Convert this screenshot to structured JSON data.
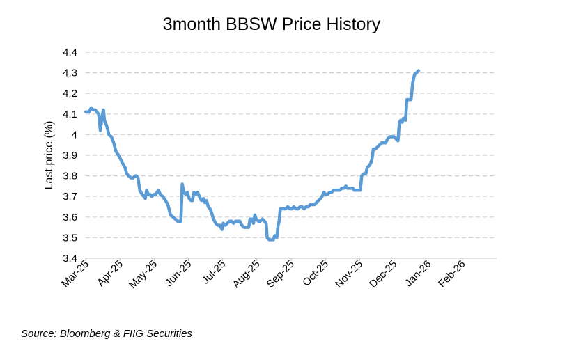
{
  "chart_data": {
    "type": "line",
    "title": "3month BBSW Price History",
    "xlabel": "",
    "ylabel": "Last price (%)",
    "ylim": [
      3.4,
      4.4
    ],
    "yticks": [
      "3.4",
      "3.5",
      "3.6",
      "3.7",
      "3.8",
      "3.9",
      "4",
      "4.1",
      "4.2",
      "4.3",
      "4.4"
    ],
    "xlim": [
      0,
      12
    ],
    "xticks": [
      "Mar-25",
      "Apr-25",
      "May-25",
      "Jun-25",
      "Jul-25",
      "Aug-25",
      "Sep-25",
      "Oct-25",
      "Nov-25",
      "Dec-25",
      "Jan-26",
      "Feb-26"
    ],
    "grid": true,
    "legend": "none",
    "series": [
      {
        "name": "3month BBSW",
        "color": "#5b9bd5",
        "points": [
          [
            0.0,
            4.11
          ],
          [
            0.05,
            4.11
          ],
          [
            0.1,
            4.11
          ],
          [
            0.16,
            4.13
          ],
          [
            0.22,
            4.12
          ],
          [
            0.28,
            4.12
          ],
          [
            0.33,
            4.11
          ],
          [
            0.38,
            4.1
          ],
          [
            0.43,
            4.02
          ],
          [
            0.48,
            4.09
          ],
          [
            0.52,
            4.12
          ],
          [
            0.55,
            4.07
          ],
          [
            0.62,
            4.04
          ],
          [
            0.68,
            4.0
          ],
          [
            0.75,
            3.99
          ],
          [
            0.82,
            3.96
          ],
          [
            0.88,
            3.92
          ],
          [
            0.96,
            3.9
          ],
          [
            1.02,
            3.88
          ],
          [
            1.08,
            3.86
          ],
          [
            1.15,
            3.84
          ],
          [
            1.2,
            3.81
          ],
          [
            1.25,
            3.8
          ],
          [
            1.32,
            3.79
          ],
          [
            1.38,
            3.79
          ],
          [
            1.45,
            3.8
          ],
          [
            1.48,
            3.8
          ],
          [
            1.53,
            3.79
          ],
          [
            1.58,
            3.73
          ],
          [
            1.65,
            3.71
          ],
          [
            1.7,
            3.7
          ],
          [
            1.74,
            3.69
          ],
          [
            1.78,
            3.73
          ],
          [
            1.83,
            3.71
          ],
          [
            1.88,
            3.71
          ],
          [
            1.93,
            3.7
          ],
          [
            2.0,
            3.71
          ],
          [
            2.05,
            3.71
          ],
          [
            2.08,
            3.72
          ],
          [
            2.12,
            3.73
          ],
          [
            2.18,
            3.71
          ],
          [
            2.25,
            3.7
          ],
          [
            2.33,
            3.68
          ],
          [
            2.4,
            3.66
          ],
          [
            2.48,
            3.61
          ],
          [
            2.55,
            3.6
          ],
          [
            2.62,
            3.59
          ],
          [
            2.68,
            3.58
          ],
          [
            2.75,
            3.58
          ],
          [
            2.78,
            3.58
          ],
          [
            2.82,
            3.76
          ],
          [
            2.87,
            3.72
          ],
          [
            2.92,
            3.71
          ],
          [
            2.97,
            3.72
          ],
          [
            3.02,
            3.69
          ],
          [
            3.08,
            3.68
          ],
          [
            3.12,
            3.68
          ],
          [
            3.16,
            3.72
          ],
          [
            3.22,
            3.71
          ],
          [
            3.27,
            3.72
          ],
          [
            3.32,
            3.7
          ],
          [
            3.38,
            3.68
          ],
          [
            3.44,
            3.69
          ],
          [
            3.48,
            3.67
          ],
          [
            3.53,
            3.68
          ],
          [
            3.58,
            3.65
          ],
          [
            3.63,
            3.64
          ],
          [
            3.68,
            3.62
          ],
          [
            3.73,
            3.59
          ],
          [
            3.8,
            3.57
          ],
          [
            3.86,
            3.56
          ],
          [
            3.92,
            3.56
          ],
          [
            3.98,
            3.54
          ],
          [
            4.02,
            3.57
          ],
          [
            4.08,
            3.56
          ],
          [
            4.14,
            3.57
          ],
          [
            4.2,
            3.58
          ],
          [
            4.26,
            3.58
          ],
          [
            4.32,
            3.57
          ],
          [
            4.38,
            3.58
          ],
          [
            4.44,
            3.58
          ],
          [
            4.5,
            3.58
          ],
          [
            4.56,
            3.56
          ],
          [
            4.62,
            3.55
          ],
          [
            4.7,
            3.55
          ],
          [
            4.76,
            3.55
          ],
          [
            4.8,
            3.59
          ],
          [
            4.86,
            3.59
          ],
          [
            4.9,
            3.57
          ],
          [
            4.94,
            3.61
          ],
          [
            4.98,
            3.59
          ],
          [
            5.04,
            3.58
          ],
          [
            5.1,
            3.58
          ],
          [
            5.16,
            3.59
          ],
          [
            5.22,
            3.58
          ],
          [
            5.27,
            3.57
          ],
          [
            5.3,
            3.5
          ],
          [
            5.36,
            3.49
          ],
          [
            5.42,
            3.49
          ],
          [
            5.48,
            3.49
          ],
          [
            5.52,
            3.51
          ],
          [
            5.58,
            3.5
          ],
          [
            5.62,
            3.56
          ],
          [
            5.65,
            3.58
          ],
          [
            5.68,
            3.64
          ],
          [
            5.72,
            3.64
          ],
          [
            5.78,
            3.64
          ],
          [
            5.84,
            3.64
          ],
          [
            5.9,
            3.65
          ],
          [
            5.96,
            3.64
          ],
          [
            6.02,
            3.64
          ],
          [
            6.08,
            3.65
          ],
          [
            6.14,
            3.64
          ],
          [
            6.2,
            3.64
          ],
          [
            6.26,
            3.65
          ],
          [
            6.32,
            3.65
          ],
          [
            6.38,
            3.64
          ],
          [
            6.44,
            3.65
          ],
          [
            6.5,
            3.65
          ],
          [
            6.56,
            3.66
          ],
          [
            6.62,
            3.66
          ],
          [
            6.68,
            3.66
          ],
          [
            6.74,
            3.67
          ],
          [
            6.8,
            3.68
          ],
          [
            6.86,
            3.69
          ],
          [
            6.9,
            3.7
          ],
          [
            6.96,
            3.72
          ],
          [
            7.0,
            3.71
          ],
          [
            7.06,
            3.71
          ],
          [
            7.12,
            3.72
          ],
          [
            7.18,
            3.72
          ],
          [
            7.24,
            3.73
          ],
          [
            7.3,
            3.73
          ],
          [
            7.36,
            3.73
          ],
          [
            7.42,
            3.73
          ],
          [
            7.48,
            3.74
          ],
          [
            7.54,
            3.74
          ],
          [
            7.6,
            3.75
          ],
          [
            7.64,
            3.74
          ],
          [
            7.7,
            3.74
          ],
          [
            7.76,
            3.74
          ],
          [
            7.8,
            3.74
          ],
          [
            7.84,
            3.73
          ],
          [
            7.9,
            3.73
          ],
          [
            7.96,
            3.73
          ],
          [
            8.02,
            3.73
          ],
          [
            8.06,
            3.8
          ],
          [
            8.12,
            3.81
          ],
          [
            8.18,
            3.81
          ],
          [
            8.22,
            3.84
          ],
          [
            8.28,
            3.85
          ],
          [
            8.32,
            3.86
          ],
          [
            8.36,
            3.88
          ],
          [
            8.4,
            3.93
          ],
          [
            8.46,
            3.93
          ],
          [
            8.52,
            3.94
          ],
          [
            8.58,
            3.95
          ],
          [
            8.64,
            3.96
          ],
          [
            8.7,
            3.96
          ],
          [
            8.76,
            3.96
          ],
          [
            8.82,
            3.98
          ],
          [
            8.88,
            3.99
          ],
          [
            8.94,
            3.99
          ],
          [
            9.0,
            3.99
          ],
          [
            9.06,
            3.98
          ],
          [
            9.12,
            3.97
          ],
          [
            9.16,
            4.06
          ],
          [
            9.2,
            4.07
          ],
          [
            9.24,
            4.06
          ],
          [
            9.28,
            4.08
          ],
          [
            9.34,
            4.07
          ],
          [
            9.38,
            4.17
          ],
          [
            9.44,
            4.17
          ],
          [
            9.5,
            4.17
          ],
          [
            9.55,
            4.25
          ],
          [
            9.6,
            4.29
          ],
          [
            9.66,
            4.3
          ],
          [
            9.72,
            4.31
          ]
        ]
      }
    ]
  },
  "source": "Source: Bloomberg & FIIG Securities"
}
